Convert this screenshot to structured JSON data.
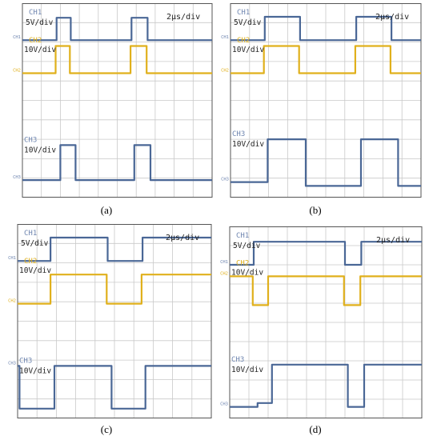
{
  "figure": {
    "panels": [
      {
        "caption": "(a)",
        "ch1_label": "CH1",
        "ch1_scale": "5V/div",
        "ch2_label": "CH2",
        "ch2_scale": "10V/div",
        "ch3_label": "CH3",
        "ch3_scale": "10V/div",
        "time_scale": "2µs/div",
        "ch1_marker": "CH1",
        "ch2_marker": "CH2",
        "ch3_marker": "CH3"
      },
      {
        "caption": "(b)",
        "ch1_label": "CH1",
        "ch1_scale": "5V/div",
        "ch2_label": "CH2",
        "ch2_scale": "10V/div",
        "ch3_label": "CH3",
        "ch3_scale": "10V/div",
        "time_scale": "2µs/div",
        "ch1_marker": "CH1",
        "ch2_marker": "CH2",
        "ch3_marker": "CH3"
      },
      {
        "caption": "(c)",
        "ch1_label": "CH1",
        "ch1_scale": "5V/div",
        "ch2_label": "CH2",
        "ch2_scale": "10V/div",
        "ch3_label": "CH3",
        "ch3_scale": "10V/div",
        "time_scale": "2µs/div",
        "ch1_marker": "CH1",
        "ch2_marker": "CH2",
        "ch3_marker": "CH3"
      },
      {
        "caption": "(d)",
        "ch1_label": "CH1",
        "ch1_scale": "5V/div",
        "ch2_label": "CH2",
        "ch2_scale": "10V/div",
        "ch3_label": "CH3",
        "ch3_scale": "10V/div",
        "time_scale": "2µs/div",
        "ch1_marker": "CH1",
        "ch2_marker": "CH2",
        "ch3_marker": "CH3"
      }
    ],
    "colors": {
      "ch1": "#4a6796",
      "ch2": "#e0b01c",
      "ch3": "#4a6796",
      "grid": "#c9c9c9",
      "frame": "#555555",
      "label_blue": "#6f86b0"
    }
  },
  "chart_data": [
    {
      "type": "line",
      "title": "",
      "x_unit": "µs",
      "xlim": [
        0,
        20
      ],
      "ylim": [
        0,
        10
      ],
      "grid": true,
      "grid_divisions": [
        10,
        10
      ],
      "series": [
        {
          "name": "CH1",
          "color": "#4a6796",
          "points": [
            [
              0,
              8.1
            ],
            [
              3.6,
              8.1
            ],
            [
              3.6,
              9.25
            ],
            [
              5.1,
              9.25
            ],
            [
              5.1,
              8.1
            ],
            [
              11.5,
              8.1
            ],
            [
              11.5,
              9.25
            ],
            [
              13.2,
              9.25
            ],
            [
              13.2,
              8.1
            ],
            [
              20,
              8.1
            ]
          ]
        },
        {
          "name": "CH2",
          "color": "#e0b01c",
          "points": [
            [
              0,
              6.4
            ],
            [
              3.5,
              6.4
            ],
            [
              3.5,
              7.8
            ],
            [
              5.0,
              7.8
            ],
            [
              5.0,
              6.4
            ],
            [
              11.4,
              6.4
            ],
            [
              11.4,
              7.8
            ],
            [
              13.1,
              7.8
            ],
            [
              13.1,
              6.4
            ],
            [
              20,
              6.4
            ]
          ]
        },
        {
          "name": "CH3",
          "color": "#4a6796",
          "points": [
            [
              0,
              0.9
            ],
            [
              4.0,
              0.9
            ],
            [
              4.0,
              2.7
            ],
            [
              5.6,
              2.7
            ],
            [
              5.6,
              0.9
            ],
            [
              11.8,
              0.9
            ],
            [
              11.8,
              2.7
            ],
            [
              13.5,
              2.7
            ],
            [
              13.5,
              0.9
            ],
            [
              20,
              0.9
            ]
          ]
        }
      ]
    },
    {
      "type": "line",
      "title": "",
      "x_unit": "µs",
      "xlim": [
        0,
        20
      ],
      "ylim": [
        0,
        10
      ],
      "grid": true,
      "grid_divisions": [
        10,
        10
      ],
      "series": [
        {
          "name": "CH1",
          "color": "#4a6796",
          "points": [
            [
              0,
              8.1
            ],
            [
              3.6,
              8.1
            ],
            [
              3.6,
              9.3
            ],
            [
              7.3,
              9.3
            ],
            [
              7.3,
              8.1
            ],
            [
              13.2,
              8.1
            ],
            [
              13.2,
              9.3
            ],
            [
              16.9,
              9.3
            ],
            [
              16.9,
              8.1
            ],
            [
              20,
              8.1
            ]
          ]
        },
        {
          "name": "CH2",
          "color": "#e0b01c",
          "points": [
            [
              0,
              6.4
            ],
            [
              3.5,
              6.4
            ],
            [
              3.5,
              7.8
            ],
            [
              7.2,
              7.8
            ],
            [
              7.2,
              6.4
            ],
            [
              13.1,
              6.4
            ],
            [
              13.1,
              7.8
            ],
            [
              16.8,
              7.8
            ],
            [
              16.8,
              6.4
            ],
            [
              20,
              6.4
            ]
          ]
        },
        {
          "name": "CH3",
          "color": "#4a6796",
          "points": [
            [
              0,
              0.8
            ],
            [
              3.9,
              0.8
            ],
            [
              3.9,
              3.0
            ],
            [
              7.9,
              3.0
            ],
            [
              7.9,
              0.6
            ],
            [
              13.7,
              0.6
            ],
            [
              13.7,
              3.0
            ],
            [
              17.6,
              3.0
            ],
            [
              17.6,
              0.6
            ],
            [
              20,
              0.6
            ]
          ]
        }
      ]
    },
    {
      "type": "line",
      "title": "",
      "x_unit": "µs",
      "xlim": [
        0,
        20
      ],
      "ylim": [
        0,
        10
      ],
      "grid": true,
      "grid_divisions": [
        10,
        10
      ],
      "series": [
        {
          "name": "CH1",
          "color": "#4a6796",
          "points": [
            [
              0,
              8.1
            ],
            [
              3.4,
              8.1
            ],
            [
              3.4,
              9.3
            ],
            [
              9.3,
              9.3
            ],
            [
              9.3,
              8.1
            ],
            [
              12.9,
              8.1
            ],
            [
              12.9,
              9.3
            ],
            [
              20,
              9.3
            ]
          ]
        },
        {
          "name": "CH2",
          "color": "#e0b01c",
          "points": [
            [
              0,
              5.9
            ],
            [
              3.4,
              5.9
            ],
            [
              3.4,
              7.4
            ],
            [
              9.2,
              7.4
            ],
            [
              9.2,
              5.9
            ],
            [
              12.8,
              5.9
            ],
            [
              12.8,
              7.4
            ],
            [
              20,
              7.4
            ]
          ]
        },
        {
          "name": "CH3",
          "color": "#4a6796",
          "points": [
            [
              0,
              2.7
            ],
            [
              0.2,
              2.7
            ],
            [
              0.2,
              0.5
            ],
            [
              3.8,
              0.5
            ],
            [
              3.8,
              2.7
            ],
            [
              9.7,
              2.7
            ],
            [
              9.7,
              0.5
            ],
            [
              13.2,
              0.5
            ],
            [
              13.2,
              2.7
            ],
            [
              20,
              2.7
            ]
          ]
        }
      ]
    },
    {
      "type": "line",
      "title": "",
      "x_unit": "µs",
      "xlim": [
        0,
        20
      ],
      "ylim": [
        0,
        10
      ],
      "grid": true,
      "grid_divisions": [
        10,
        10
      ],
      "series": [
        {
          "name": "CH1",
          "color": "#4a6796",
          "points": [
            [
              0,
              8.0
            ],
            [
              2.5,
              8.0
            ],
            [
              2.5,
              9.2
            ],
            [
              12.0,
              9.2
            ],
            [
              12.0,
              8.0
            ],
            [
              13.7,
              8.0
            ],
            [
              13.7,
              9.2
            ],
            [
              20,
              9.2
            ]
          ]
        },
        {
          "name": "CH2",
          "color": "#e0b01c",
          "points": [
            [
              0,
              7.4
            ],
            [
              2.4,
              7.4
            ],
            [
              2.4,
              5.9
            ],
            [
              4.0,
              5.9
            ],
            [
              4.0,
              7.4
            ],
            [
              11.9,
              7.4
            ],
            [
              11.9,
              5.9
            ],
            [
              13.6,
              5.9
            ],
            [
              13.6,
              7.4
            ],
            [
              20,
              7.4
            ]
          ]
        },
        {
          "name": "CH3",
          "color": "#4a6796",
          "points": [
            [
              0,
              0.6
            ],
            [
              2.9,
              0.6
            ],
            [
              2.9,
              0.8
            ],
            [
              4.4,
              0.8
            ],
            [
              4.4,
              2.8
            ],
            [
              12.3,
              2.8
            ],
            [
              12.3,
              0.6
            ],
            [
              14.0,
              0.6
            ],
            [
              14.0,
              2.8
            ],
            [
              20,
              2.8
            ]
          ]
        }
      ]
    }
  ]
}
